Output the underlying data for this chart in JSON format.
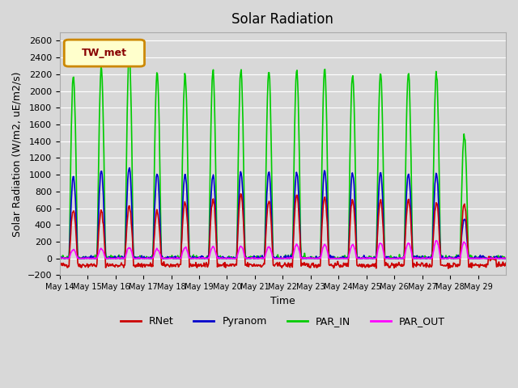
{
  "title": "Solar Radiation",
  "ylabel": "Solar Radiation (W/m2, uE/m2/s)",
  "xlabel": "Time",
  "ylim": [
    -200,
    2700
  ],
  "yticks": [
    -200,
    0,
    200,
    400,
    600,
    800,
    1000,
    1200,
    1400,
    1600,
    1800,
    2000,
    2200,
    2400,
    2600
  ],
  "bg_color": "#d8d8d8",
  "legend_label": "TW_met",
  "legend_facecolor": "#ffffcc",
  "legend_edgecolor": "#cc8800",
  "series": {
    "RNet": {
      "color": "#cc0000",
      "lw": 1.2
    },
    "Pyranom": {
      "color": "#0000cc",
      "lw": 1.2
    },
    "PAR_IN": {
      "color": "#00cc00",
      "lw": 1.2
    },
    "PAR_OUT": {
      "color": "#ff00ff",
      "lw": 1.2
    }
  },
  "n_days": 16,
  "points_per_day": 48,
  "rnet_day_peak": [
    580,
    560,
    620,
    560,
    670,
    720,
    760,
    680,
    760,
    740,
    700,
    690,
    700,
    670,
    650,
    0
  ],
  "rnet_night": -80,
  "pyranom_day_peak": [
    980,
    1050,
    1080,
    1020,
    1010,
    1000,
    1030,
    1040,
    1040,
    1050,
    1020,
    1030,
    1020,
    1010,
    480,
    0
  ],
  "par_in_day_peak": [
    2180,
    2270,
    2440,
    2210,
    2210,
    2230,
    2250,
    2240,
    2250,
    2250,
    2210,
    2220,
    2220,
    2220,
    1480,
    0
  ],
  "par_out_day_peak": [
    105,
    115,
    130,
    110,
    130,
    140,
    145,
    140,
    165,
    165,
    165,
    185,
    185,
    210,
    200,
    0
  ],
  "x_tick_labels": [
    "May 14",
    "May 15",
    "May 16",
    "May 17",
    "May 18",
    "May 19",
    "May 20",
    "May 21",
    "May 22",
    "May 23",
    "May 24",
    "May 25",
    "May 26",
    "May 27",
    "May 28",
    "May 29"
  ]
}
